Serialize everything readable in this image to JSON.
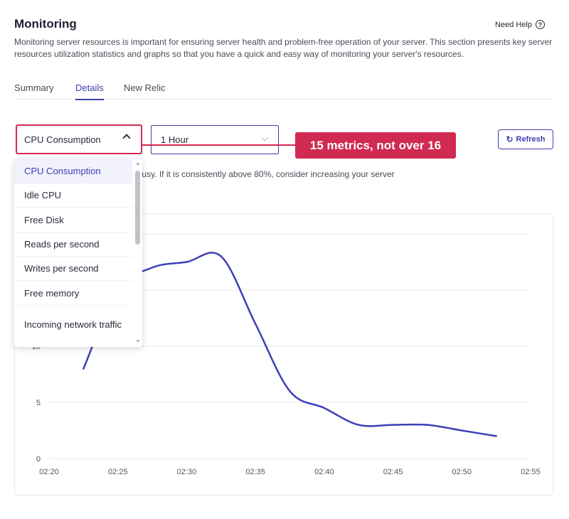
{
  "header": {
    "title": "Monitoring",
    "help_label": "Need Help",
    "help_icon": "question-circle-icon",
    "description": "Monitoring server resources is important for ensuring server health and problem-free operation of your server. This section presents key server resources utilization statistics and graphs so that you have a quick and easy way of monitoring your server's resources."
  },
  "tabs": [
    {
      "label": "Summary",
      "active": false
    },
    {
      "label": "Details",
      "active": true
    },
    {
      "label": "New Relic",
      "active": false
    }
  ],
  "controls": {
    "metric_selected": "CPU Consumption",
    "range_selected": "1 Hour",
    "refresh_label": "Refresh",
    "refresh_icon": "refresh-icon"
  },
  "annotation": {
    "text": "15 metrics, not over 16",
    "color": "#d12a52"
  },
  "note_text": "n. Higher means server is more busy. If it is consistently above 80%, consider increasing your server",
  "dropdown": {
    "items": [
      "CPU Consumption",
      "Idle CPU",
      "Free Disk",
      "Reads per second",
      "Writes per second",
      "Free memory",
      "Incoming network traffic"
    ],
    "selected_index": 0
  },
  "colors": {
    "accent": "#3d3fb0",
    "line": "#3b3fb6",
    "highlight": "#d12a52"
  },
  "chart_data": {
    "type": "line",
    "x_ticks": [
      "02:20",
      "02:25",
      "02:30",
      "02:35",
      "02:40",
      "02:45",
      "02:50",
      "02:55"
    ],
    "y_ticks": [
      "0",
      "5",
      "10"
    ],
    "ylim": [
      0,
      20
    ],
    "grid": true,
    "series": [
      {
        "x": [
          "02:22:30",
          "02:25:00",
          "02:27:30",
          "02:30:00",
          "02:32:30",
          "02:35:00",
          "02:37:30",
          "02:40:00",
          "02:42:30",
          "02:45:00",
          "02:47:30",
          "02:50:00",
          "02:52:30"
        ],
        "values": [
          8,
          15,
          17,
          17.5,
          18,
          12,
          6,
          4.5,
          3,
          3,
          3,
          2.5,
          2
        ]
      }
    ]
  }
}
